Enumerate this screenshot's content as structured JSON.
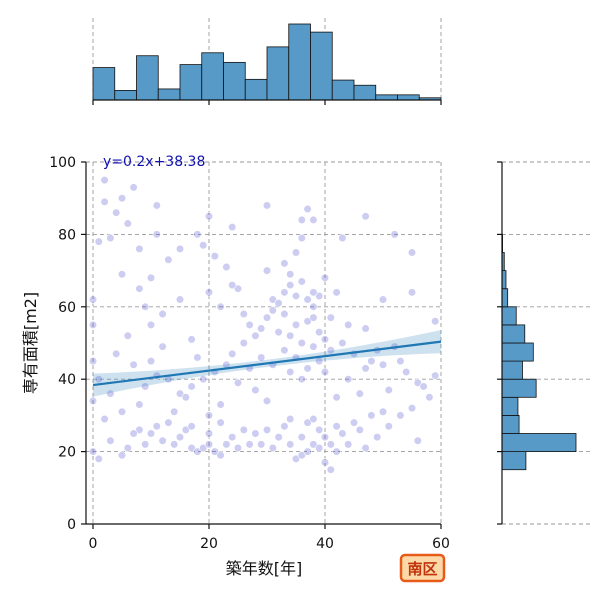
{
  "chart_data": {
    "type": "scatter",
    "xlabel": "築年数[年]",
    "ylabel": "専有面積[m2]",
    "xlim": [
      0,
      60
    ],
    "ylim": [
      0,
      100
    ],
    "xticks": [
      0,
      20,
      40,
      60
    ],
    "yticks": [
      0,
      20,
      40,
      60,
      80,
      100
    ],
    "grid": true,
    "regression": {
      "label": "y=0.2x+38.38",
      "slope": 0.2,
      "intercept": 38.38
    },
    "badge": "南区",
    "top_histogram": {
      "bin_edges": [
        0,
        3.75,
        7.5,
        11.25,
        15,
        18.75,
        22.5,
        26.25,
        30,
        33.75,
        37.5,
        41.25,
        45,
        48.75,
        52.5,
        56.25,
        60
      ],
      "counts": [
        44,
        13,
        60,
        15,
        48,
        64,
        51,
        28,
        72,
        103,
        92,
        27,
        20,
        7,
        7,
        3
      ]
    },
    "right_histogram": {
      "bin_edges": [
        15,
        20,
        25,
        30,
        35,
        40,
        45,
        50,
        55,
        60,
        65,
        70,
        75,
        80,
        85,
        90,
        95,
        100
      ],
      "counts": [
        42,
        130,
        30,
        28,
        60,
        36,
        55,
        40,
        25,
        10,
        7,
        4,
        1,
        0,
        0,
        0,
        0
      ]
    },
    "scatter_points": [
      [
        0,
        20
      ],
      [
        0,
        34
      ],
      [
        0,
        45
      ],
      [
        0,
        55
      ],
      [
        0,
        62
      ],
      [
        1,
        78
      ],
      [
        2,
        95
      ],
      [
        3,
        79
      ],
      [
        5,
        69
      ],
      [
        5,
        90
      ],
      [
        8,
        65
      ],
      [
        9,
        60
      ],
      [
        10,
        68
      ],
      [
        10,
        55
      ],
      [
        12,
        58
      ],
      [
        15,
        62
      ],
      [
        17,
        51
      ],
      [
        20,
        64
      ],
      [
        22,
        60
      ],
      [
        25,
        65
      ],
      [
        30,
        70
      ],
      [
        34,
        69
      ],
      [
        35,
        75
      ],
      [
        36,
        79
      ],
      [
        38,
        60
      ],
      [
        40,
        68
      ],
      [
        42,
        64
      ],
      [
        44,
        55
      ],
      [
        47,
        54
      ],
      [
        50,
        62
      ],
      [
        55,
        64
      ],
      [
        59,
        56
      ],
      [
        6,
        21
      ],
      [
        8,
        26
      ],
      [
        9,
        22
      ],
      [
        10,
        25
      ],
      [
        11,
        27
      ],
      [
        12,
        23
      ],
      [
        14,
        22
      ],
      [
        16,
        26
      ],
      [
        17,
        21
      ],
      [
        18,
        20
      ],
      [
        19,
        21
      ],
      [
        20,
        22
      ],
      [
        21,
        20
      ],
      [
        22,
        19
      ],
      [
        23,
        22
      ],
      [
        25,
        21
      ],
      [
        27,
        22
      ],
      [
        28,
        25
      ],
      [
        30,
        26
      ],
      [
        32,
        24
      ],
      [
        34,
        22
      ],
      [
        35,
        18
      ],
      [
        36,
        19
      ],
      [
        37,
        20
      ],
      [
        38,
        22
      ],
      [
        39,
        21
      ],
      [
        40,
        17
      ],
      [
        41,
        15
      ],
      [
        42,
        20
      ],
      [
        44,
        22
      ],
      [
        46,
        26
      ],
      [
        48,
        30
      ],
      [
        50,
        31
      ],
      [
        53,
        30
      ],
      [
        55,
        32
      ],
      [
        58,
        35
      ],
      [
        1,
        40
      ],
      [
        3,
        36
      ],
      [
        5,
        31
      ],
      [
        7,
        44
      ],
      [
        9,
        38
      ],
      [
        11,
        41
      ],
      [
        13,
        40
      ],
      [
        15,
        36
      ],
      [
        17,
        38
      ],
      [
        19,
        40
      ],
      [
        21,
        42
      ],
      [
        23,
        44
      ],
      [
        25,
        39
      ],
      [
        27,
        43
      ],
      [
        29,
        46
      ],
      [
        31,
        44
      ],
      [
        33,
        48
      ],
      [
        34,
        42
      ],
      [
        35,
        46
      ],
      [
        36,
        40
      ],
      [
        37,
        43
      ],
      [
        38,
        49
      ],
      [
        39,
        45
      ],
      [
        40,
        42
      ],
      [
        41,
        48
      ],
      [
        43,
        50
      ],
      [
        45,
        47
      ],
      [
        47,
        43
      ],
      [
        49,
        48
      ],
      [
        51,
        37
      ],
      [
        53,
        45
      ],
      [
        56,
        39
      ],
      [
        2,
        29
      ],
      [
        4,
        47
      ],
      [
        6,
        52
      ],
      [
        8,
        33
      ],
      [
        10,
        45
      ],
      [
        12,
        49
      ],
      [
        14,
        31
      ],
      [
        16,
        35
      ],
      [
        18,
        46
      ],
      [
        20,
        30
      ],
      [
        22,
        33
      ],
      [
        24,
        47
      ],
      [
        26,
        50
      ],
      [
        28,
        37
      ],
      [
        30,
        34
      ],
      [
        32,
        53
      ],
      [
        33,
        58
      ],
      [
        34,
        52
      ],
      [
        35,
        55
      ],
      [
        36,
        50
      ],
      [
        37,
        56
      ],
      [
        38,
        57
      ],
      [
        39,
        53
      ],
      [
        40,
        51
      ],
      [
        41,
        57
      ],
      [
        42,
        35
      ],
      [
        44,
        40
      ],
      [
        46,
        36
      ],
      [
        48,
        45
      ],
      [
        50,
        44
      ],
      [
        52,
        49
      ],
      [
        54,
        42
      ],
      [
        57,
        38
      ],
      [
        59,
        41
      ],
      [
        33,
        72
      ],
      [
        36,
        84
      ],
      [
        37,
        87
      ],
      [
        39,
        63
      ],
      [
        31,
        62
      ],
      [
        32,
        61
      ],
      [
        34,
        66
      ],
      [
        35,
        63
      ],
      [
        36,
        67
      ],
      [
        37,
        62
      ],
      [
        38,
        64
      ],
      [
        33,
        64
      ],
      [
        31,
        59
      ],
      [
        30,
        57
      ],
      [
        29,
        54
      ],
      [
        28,
        52
      ],
      [
        27,
        55
      ],
      [
        26,
        58
      ],
      [
        24,
        66
      ],
      [
        23,
        71
      ],
      [
        21,
        74
      ],
      [
        19,
        77
      ],
      [
        18,
        80
      ],
      [
        15,
        76
      ],
      [
        13,
        73
      ],
      [
        11,
        80
      ],
      [
        8,
        76
      ],
      [
        6,
        83
      ],
      [
        4,
        86
      ],
      [
        2,
        89
      ],
      [
        7,
        93
      ],
      [
        11,
        88
      ],
      [
        20,
        85
      ],
      [
        24,
        82
      ],
      [
        30,
        88
      ],
      [
        38,
        84
      ],
      [
        43,
        79
      ],
      [
        47,
        85
      ],
      [
        52,
        80
      ],
      [
        55,
        75
      ],
      [
        1,
        18
      ],
      [
        3,
        23
      ],
      [
        5,
        19
      ],
      [
        7,
        25
      ],
      [
        13,
        28
      ],
      [
        15,
        24
      ],
      [
        17,
        27
      ],
      [
        20,
        25
      ],
      [
        22,
        28
      ],
      [
        24,
        24
      ],
      [
        26,
        26
      ],
      [
        29,
        22
      ],
      [
        31,
        21
      ],
      [
        33,
        27
      ],
      [
        34,
        29
      ],
      [
        36,
        24
      ],
      [
        37,
        28
      ],
      [
        38,
        29
      ],
      [
        39,
        26
      ],
      [
        40,
        24
      ],
      [
        41,
        22
      ],
      [
        42,
        27
      ],
      [
        43,
        25
      ],
      [
        45,
        28
      ],
      [
        47,
        21
      ],
      [
        49,
        24
      ],
      [
        51,
        27
      ],
      [
        56,
        23
      ]
    ]
  }
}
